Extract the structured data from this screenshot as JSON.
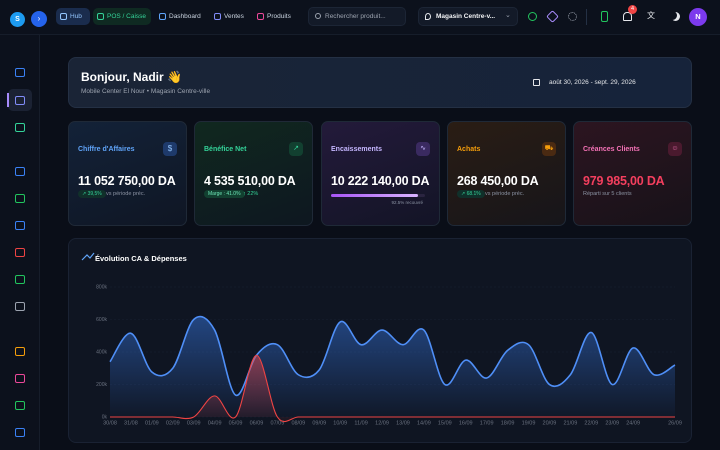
{
  "topbar": {
    "logo": "S",
    "tabs": [
      "Hub",
      "POS / Caisse",
      "Dashboard",
      "Ventes",
      "Produits"
    ],
    "search_placeholder": "Rechercher produit...",
    "store": "Magasin Centre-v...",
    "notification_count": "4",
    "avatar": "N"
  },
  "greeting": {
    "title": "Bonjour, Nadir 👋",
    "subtitle": "Mobile Center El Nour • Magasin Centre-ville",
    "date_range": "août 30, 2026 - sept. 29, 2026"
  },
  "kpis": [
    {
      "label": "Chiffre d'Affaires",
      "value": "11 052 750,00 DA",
      "badge": "↗ 39,5%",
      "note": "vs période préc."
    },
    {
      "label": "Bénéfice Net",
      "value": "4 535 510,00 DA",
      "badge": "Marge : 41.0%",
      "note": "↑ 22%"
    },
    {
      "label": "Encaissements",
      "value": "10 222 140,00 DA",
      "progress": {
        "value": 92.5,
        "label": "92.5% recouvré"
      }
    },
    {
      "label": "Achats",
      "value": "268 450,00 DA",
      "badge": "↗ 68.1%",
      "note": "vs période préc."
    },
    {
      "label": "Créances Clients",
      "value": "979 985,00 DA",
      "note": "Réparti sur 5 clients"
    }
  ],
  "chart_data": {
    "type": "area",
    "title": "Évolution CA & Dépenses",
    "categories": [
      "30/08",
      "31/08",
      "01/09",
      "02/09",
      "03/09",
      "04/09",
      "05/09",
      "06/09",
      "07/09",
      "08/09",
      "09/09",
      "10/09",
      "11/09",
      "12/09",
      "13/09",
      "14/09",
      "15/09",
      "16/09",
      "17/09",
      "18/09",
      "19/09",
      "20/09",
      "21/09",
      "22/09",
      "23/09",
      "24/09",
      null,
      "26/09"
    ],
    "series": [
      {
        "color": "#4f8ff7",
        "values": [
          340000,
          515000,
          277000,
          300000,
          600000,
          535000,
          135000,
          380000,
          445000,
          260000,
          290000,
          585000,
          445000,
          535000,
          445000,
          535000,
          200000,
          350000,
          240000,
          410000,
          445000,
          200000,
          260000,
          520000,
          200000,
          425000,
          260000,
          320000
        ]
      },
      {
        "color": "#ef4444",
        "values": [
          0,
          0,
          0,
          0,
          0,
          130000,
          0,
          380000,
          0,
          0,
          0,
          0,
          0,
          0,
          0,
          0,
          0,
          0,
          0,
          0,
          0,
          0,
          0,
          0,
          0,
          0,
          0,
          0
        ]
      }
    ],
    "ylim": [
      0,
      800000
    ],
    "yticks": [
      {
        "value": 0,
        "label": "0k"
      },
      {
        "value": 200000,
        "label": "200k"
      },
      {
        "value": 400000,
        "label": "400k"
      },
      {
        "value": 600000,
        "label": "600k"
      },
      {
        "value": 800000,
        "label": "800k"
      }
    ]
  }
}
